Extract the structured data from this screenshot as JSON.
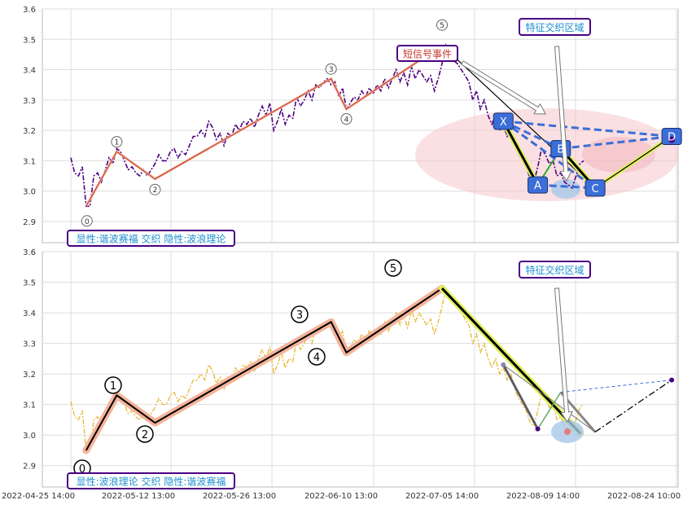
{
  "colors": {
    "price_top": "#4b0082",
    "price_bottom": "#e6b422",
    "wave_line": "#c0392b",
    "wave_glow": "#f4b49a",
    "harmonic_box": "#3b6ed8",
    "harmonic_dash": "#3b6ed8",
    "bear_line": "#000000",
    "bear_glow": "#e0f060",
    "ellipse": "#f5c6cb",
    "label_border": "#4b0082",
    "label_text": "#1e8fd0",
    "signal_text": "#c0392b",
    "grid": "#dddddd"
  },
  "chart_data": [
    {
      "type": "line",
      "panel": "top",
      "y_ticks": [
        "3.6",
        "3.5",
        "3.4",
        "3.3",
        "3.2",
        "3.1",
        "3.0",
        "2.9"
      ],
      "ylim": [
        2.83,
        3.6
      ],
      "series": [
        {
          "name": "",
          "values": [
            3.11,
            3.06,
            3.05,
            3.08,
            2.95,
            2.95,
            3.05,
            3.06,
            3.03,
            3.07,
            3.11,
            3.09,
            3.14,
            3.13,
            3.1,
            3.07,
            3.08,
            3.06,
            3.05,
            3.07,
            3.05,
            3.07,
            3.09,
            3.12,
            3.1,
            3.1,
            3.13,
            3.14,
            3.11,
            3.13,
            3.12,
            3.15,
            3.18,
            3.18,
            3.2,
            3.18,
            3.23,
            3.21,
            3.17,
            3.19,
            3.15,
            3.19,
            3.18,
            3.22,
            3.2,
            3.23,
            3.22,
            3.24,
            3.21,
            3.25,
            3.28,
            3.25,
            3.29,
            3.2,
            3.23,
            3.27,
            3.22,
            3.25,
            3.24,
            3.31,
            3.28,
            3.3,
            3.33,
            3.3,
            3.35,
            3.34,
            3.36,
            3.37,
            3.35,
            3.36,
            3.31,
            3.34,
            3.27,
            3.29,
            3.31,
            3.3,
            3.33,
            3.31,
            3.34,
            3.32,
            3.35,
            3.33,
            3.37,
            3.34,
            3.37,
            3.4,
            3.36,
            3.39,
            3.35,
            3.41,
            3.37,
            3.4,
            3.38,
            3.36,
            3.38,
            3.33,
            3.37,
            3.42,
            3.48,
            3.45,
            3.43,
            3.42,
            3.4,
            3.38,
            3.36,
            3.3,
            3.33,
            3.27,
            3.3,
            3.25,
            3.22,
            3.25,
            3.2,
            3.22,
            3.18,
            3.2,
            3.15,
            3.12,
            3.1,
            3.08,
            3.04,
            3.03,
            3.08,
            3.14,
            3.12,
            3.09,
            3.1,
            3.05,
            3.06,
            3.03,
            3.02,
            3.01,
            3.05,
            3.09,
            3.1
          ]
        }
      ],
      "waves": [
        {
          "label": "0",
          "x": 4,
          "y": 2.95
        },
        {
          "label": "1",
          "x": 12,
          "y": 3.13
        },
        {
          "label": "2",
          "x": 22,
          "y": 3.04
        },
        {
          "label": "3",
          "x": 68,
          "y": 3.37
        },
        {
          "label": "4",
          "x": 72,
          "y": 3.27
        },
        {
          "label": "5",
          "x": 97,
          "y": 3.48
        }
      ],
      "harmonic": [
        {
          "label": "X",
          "x": 113,
          "y": 3.23
        },
        {
          "label": "A",
          "x": 122,
          "y": 3.02
        },
        {
          "label": "B",
          "x": 128,
          "y": 3.14
        },
        {
          "label": "C",
          "x": 137,
          "y": 3.01
        },
        {
          "label": "D",
          "x": 157,
          "y": 3.18
        }
      ],
      "annotations": {
        "legend": "显性:谐波赛福 交织 隐性:波浪理论",
        "zone": "特征交织区域",
        "signal": "短信号事件"
      }
    },
    {
      "type": "line",
      "panel": "bottom",
      "y_ticks": [
        "3.6",
        "3.5",
        "3.4",
        "3.3",
        "3.2",
        "3.1",
        "3.0",
        "2.9"
      ],
      "ylim": [
        2.83,
        3.6
      ],
      "x_ticks": [
        "2022-04-25 14:00",
        "2022-05-12 13:00",
        "2022-05-26 13:00",
        "2022-06-10 13:00",
        "2022-07-05 14:00",
        "2022-08-09 14:00",
        "2022-08-24 10:00"
      ],
      "annotations": {
        "legend": "显性:波浪理论 交织 隐性:谐波赛福",
        "zone": "特征交织区域"
      }
    }
  ]
}
